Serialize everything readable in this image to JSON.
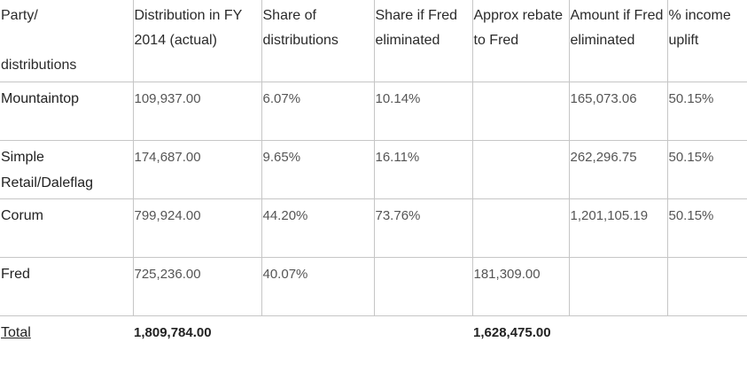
{
  "table": {
    "headers": [
      [
        "Party/",
        "distributions"
      ],
      "Distribution in FY 2014 (actual)",
      "Share of distributions",
      "Share if Fred eliminated",
      "Approx rebate to Fred",
      "Amount if Fred eliminated",
      "% income uplift"
    ],
    "rows": [
      [
        "Mountaintop",
        "109,937.00",
        "6.07%",
        "10.14%",
        "",
        "165,073.06",
        "50.15%"
      ],
      [
        "Simple Retail/Daleflag",
        "174,687.00",
        "9.65%",
        "16.11%",
        "",
        "262,296.75",
        "50.15%"
      ],
      [
        "Corum",
        "799,924.00",
        "44.20%",
        "73.76%",
        "",
        "1,201,105.19",
        "50.15%"
      ],
      [
        "Fred",
        "725,236.00",
        "40.07%",
        "",
        "181,309.00",
        "",
        ""
      ]
    ],
    "total": [
      "Total",
      "1,809,784.00",
      "",
      "",
      "1,628,475.00",
      "",
      ""
    ]
  }
}
